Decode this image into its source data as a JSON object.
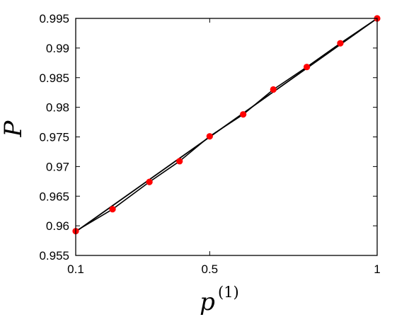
{
  "chart_data": {
    "type": "line",
    "title": "",
    "xlabel": "p",
    "xlabel_superscript": "(1)",
    "ylabel": "P",
    "xlim": [
      0.1,
      1.0
    ],
    "ylim": [
      0.955,
      0.995
    ],
    "x_ticks": [
      0.1,
      0.5,
      1.0
    ],
    "x_tick_labels": [
      "0.1",
      "0.5",
      "1"
    ],
    "y_ticks": [
      0.955,
      0.96,
      0.965,
      0.97,
      0.975,
      0.98,
      0.985,
      0.99,
      0.995
    ],
    "y_tick_labels": [
      "0.955",
      "0.96",
      "0.965",
      "0.97",
      "0.975",
      "0.98",
      "0.985",
      "0.99",
      "0.995"
    ],
    "grid": false,
    "legend": "none",
    "series": [
      {
        "style": "line",
        "color": "#000000",
        "x": [
          0.1,
          1.0
        ],
        "y": [
          0.959,
          0.995
        ]
      },
      {
        "style": "markers",
        "color": "#ff0000",
        "x": [
          0.1,
          0.21,
          0.32,
          0.41,
          0.5,
          0.6,
          0.69,
          0.79,
          0.89,
          1.0
        ],
        "y": [
          0.9591,
          0.9628,
          0.9674,
          0.9709,
          0.9751,
          0.9788,
          0.983,
          0.9868,
          0.9908,
          0.995
        ]
      }
    ]
  }
}
